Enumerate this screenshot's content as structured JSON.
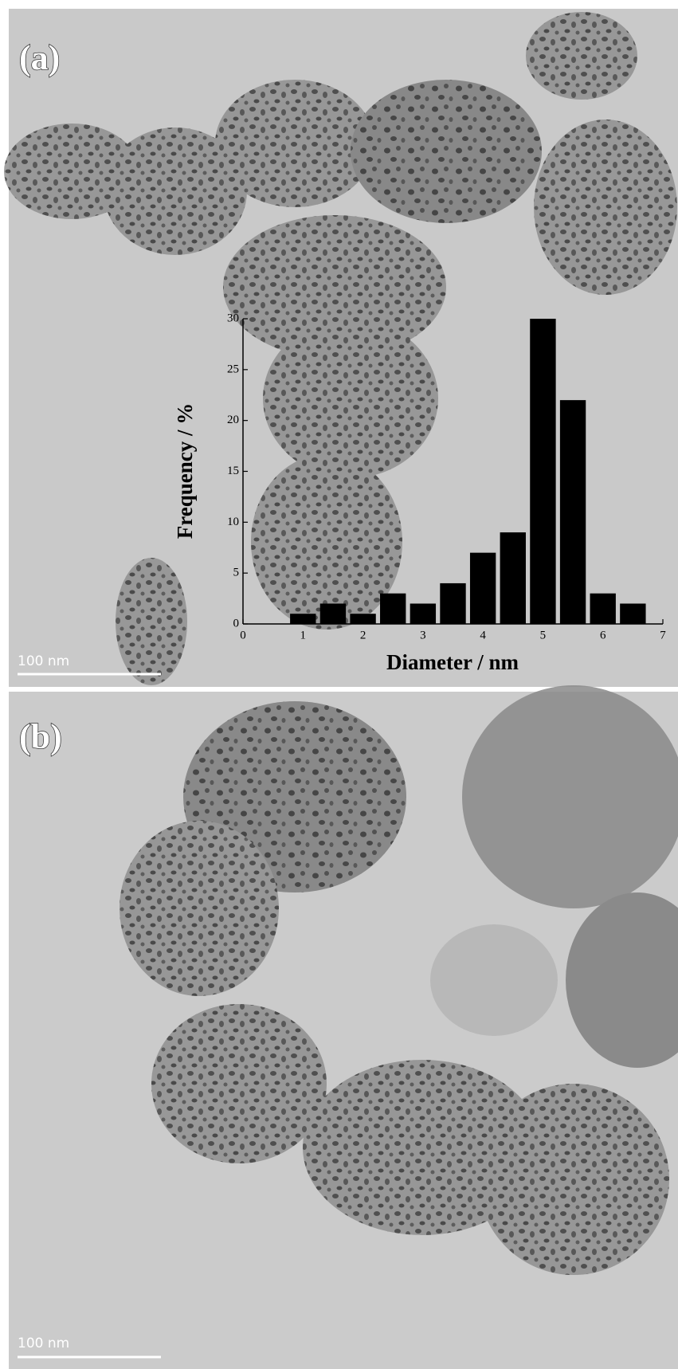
{
  "panels": [
    {
      "label": "(a)",
      "scale_bar": "100 nm"
    },
    {
      "label": "(b)",
      "scale_bar": "100 nm"
    }
  ],
  "chart_data": {
    "type": "histogram",
    "x_label": "Diameter / nm",
    "y_label": "Frequency / %",
    "bins": [
      0.75,
      1.25,
      1.75,
      2.25,
      2.75,
      3.25,
      3.75,
      4.25,
      4.75,
      5.25,
      5.75,
      6.25,
      6.75
    ],
    "values": [
      1,
      2,
      1,
      3,
      2,
      4,
      7,
      9,
      30,
      22,
      3,
      2
    ],
    "color": "#000000",
    "xlim": [
      0,
      7
    ],
    "xticks": [
      0,
      1,
      2,
      3,
      4,
      5,
      6,
      7
    ],
    "ylim": [
      0,
      30
    ],
    "yticks": [
      0,
      5,
      10,
      15,
      20,
      25,
      30
    ]
  }
}
